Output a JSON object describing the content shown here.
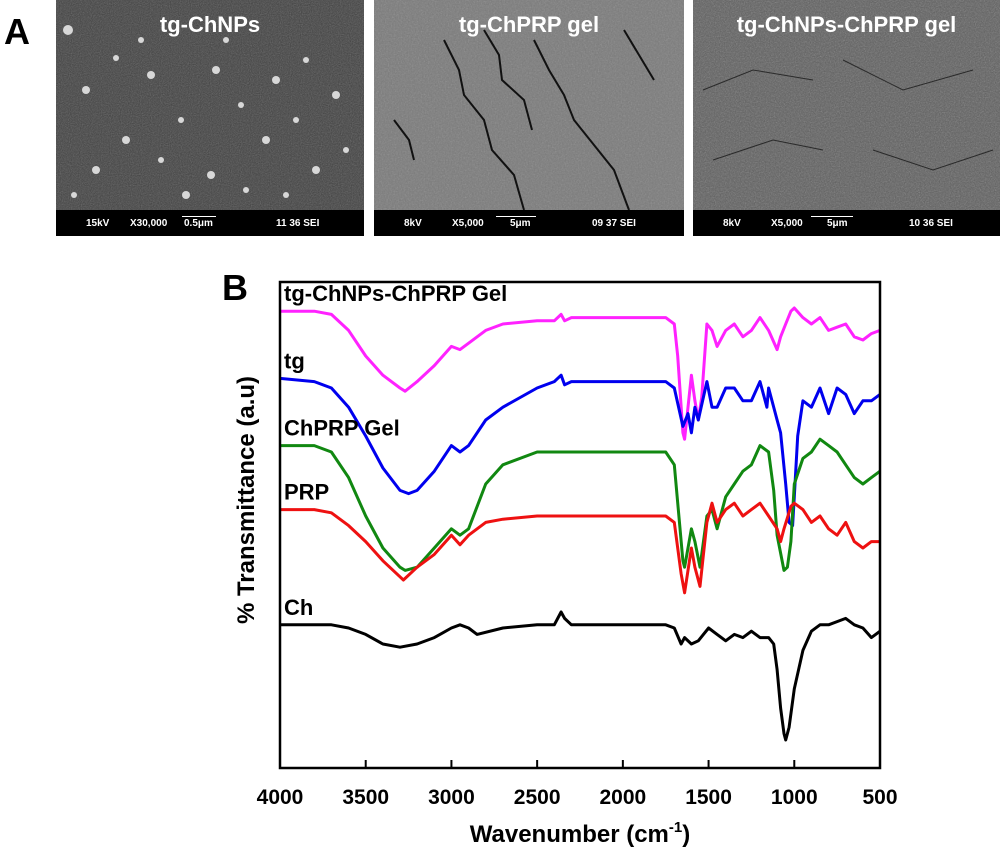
{
  "panel_a": {
    "label": "A",
    "images": [
      {
        "title": "tg-ChNPs",
        "kv": "15kV",
        "mag": "X30,000",
        "scale": "0.5μm",
        "info": "11 36 SEI"
      },
      {
        "title": "tg-ChPRP gel",
        "kv": "8kV",
        "mag": "X5,000",
        "scale": "5μm",
        "info": "09 37 SEI"
      },
      {
        "title": "tg-ChNPs-ChPRP gel",
        "kv": "8kV",
        "mag": "X5,000",
        "scale": "5μm",
        "info": "10 36 SEI"
      }
    ]
  },
  "panel_b": {
    "label": "B"
  },
  "chart_data": {
    "type": "line",
    "xlabel": "Wavenumber (cm",
    "xlabel_sup": "-1",
    "xlabel_close": ")",
    "ylabel": "% Transmittance (a.u)",
    "xlim": [
      4000,
      500
    ],
    "xticks": [
      4000,
      3500,
      3000,
      2500,
      2000,
      1500,
      1000,
      500
    ],
    "ylim": [
      0,
      100
    ],
    "y_ticks_shown": false,
    "series": [
      {
        "name": "tg-ChNPs-ChPRP Gel",
        "color": "#ff22ff",
        "x": [
          4000,
          3800,
          3700,
          3600,
          3500,
          3400,
          3300,
          3270,
          3200,
          3100,
          3000,
          2950,
          2900,
          2800,
          2700,
          2500,
          2400,
          2360,
          2340,
          2300,
          2000,
          1750,
          1700,
          1680,
          1650,
          1640,
          1600,
          1580,
          1560,
          1540,
          1510,
          1480,
          1450,
          1400,
          1350,
          1300,
          1250,
          1200,
          1150,
          1100,
          1080,
          1050,
          1020,
          1000,
          950,
          900,
          850,
          800,
          750,
          700,
          650,
          600,
          550,
          500
        ],
        "y": [
          94,
          94,
          93,
          88,
          80,
          74,
          70,
          69,
          72,
          77,
          83,
          82,
          84,
          88,
          90,
          91,
          91,
          93,
          91,
          92,
          92,
          92,
          90,
          80,
          56,
          54,
          74,
          66,
          60,
          67,
          90,
          88,
          83,
          88,
          90,
          86,
          88,
          92,
          88,
          82,
          86,
          90,
          94,
          95,
          92,
          90,
          92,
          88,
          89,
          90,
          86,
          85,
          87,
          88
        ]
      },
      {
        "name": "tg",
        "color": "#0000ee",
        "x": [
          4000,
          3800,
          3700,
          3600,
          3500,
          3400,
          3300,
          3250,
          3200,
          3100,
          3000,
          2950,
          2900,
          2800,
          2700,
          2500,
          2400,
          2360,
          2340,
          2300,
          2000,
          1750,
          1700,
          1650,
          1620,
          1600,
          1580,
          1560,
          1510,
          1480,
          1450,
          1400,
          1350,
          1300,
          1250,
          1200,
          1160,
          1150,
          1100,
          1080,
          1050,
          1030,
          1010,
          1000,
          980,
          950,
          900,
          850,
          800,
          750,
          700,
          650,
          600,
          550,
          500
        ],
        "y": [
          73,
          72,
          70,
          64,
          55,
          45,
          38,
          37,
          38,
          44,
          52,
          50,
          52,
          60,
          64,
          70,
          72,
          74,
          71,
          72,
          72,
          72,
          70,
          58,
          62,
          56,
          64,
          60,
          72,
          64,
          64,
          70,
          70,
          66,
          66,
          72,
          64,
          70,
          60,
          56,
          40,
          28,
          27,
          36,
          55,
          66,
          64,
          70,
          62,
          70,
          68,
          62,
          66,
          66,
          68
        ]
      },
      {
        "name": "ChPRP Gel",
        "color": "#118811",
        "x": [
          4000,
          3800,
          3700,
          3600,
          3500,
          3400,
          3300,
          3270,
          3200,
          3100,
          3000,
          2950,
          2900,
          2800,
          2700,
          2500,
          2400,
          2300,
          2000,
          1750,
          1700,
          1650,
          1640,
          1600,
          1580,
          1550,
          1510,
          1480,
          1450,
          1400,
          1350,
          1300,
          1250,
          1200,
          1150,
          1120,
          1100,
          1060,
          1040,
          1020,
          1000,
          950,
          900,
          850,
          800,
          750,
          700,
          650,
          600,
          550,
          500
        ],
        "y": [
          52,
          52,
          50,
          42,
          30,
          20,
          14,
          13,
          14,
          20,
          26,
          24,
          26,
          40,
          46,
          50,
          50,
          50,
          50,
          50,
          46,
          16,
          14,
          26,
          22,
          14,
          30,
          32,
          26,
          36,
          40,
          44,
          46,
          52,
          50,
          38,
          24,
          13,
          14,
          22,
          40,
          48,
          50,
          54,
          52,
          50,
          46,
          42,
          40,
          42,
          44
        ]
      },
      {
        "name": "PRP",
        "color": "#ee1111",
        "x": [
          4000,
          3800,
          3700,
          3600,
          3500,
          3400,
          3300,
          3280,
          3200,
          3100,
          3000,
          2950,
          2900,
          2800,
          2700,
          2500,
          2300,
          2000,
          1750,
          1700,
          1660,
          1640,
          1600,
          1580,
          1550,
          1510,
          1480,
          1450,
          1400,
          1350,
          1300,
          1250,
          1200,
          1150,
          1100,
          1080,
          1060,
          1020,
          1000,
          950,
          900,
          850,
          800,
          750,
          700,
          650,
          600,
          550,
          500
        ],
        "y": [
          32,
          32,
          31,
          27,
          22,
          16,
          11,
          10,
          14,
          18,
          24,
          21,
          24,
          28,
          29,
          30,
          30,
          30,
          30,
          28,
          12,
          6,
          20,
          14,
          8,
          28,
          34,
          28,
          32,
          34,
          30,
          32,
          34,
          30,
          26,
          22,
          26,
          33,
          34,
          32,
          28,
          30,
          26,
          24,
          28,
          22,
          20,
          22,
          22
        ]
      },
      {
        "name": "Ch",
        "color": "#000000",
        "x": [
          4000,
          3800,
          3700,
          3600,
          3500,
          3400,
          3300,
          3200,
          3100,
          3000,
          2950,
          2900,
          2850,
          2700,
          2500,
          2400,
          2360,
          2340,
          2300,
          2000,
          1750,
          1700,
          1660,
          1640,
          1600,
          1560,
          1500,
          1450,
          1400,
          1350,
          1300,
          1250,
          1200,
          1150,
          1120,
          1100,
          1080,
          1060,
          1050,
          1030,
          1000,
          950,
          900,
          850,
          800,
          750,
          700,
          650,
          600,
          550,
          500
        ],
        "y": [
          -4,
          -4,
          -4,
          -5,
          -7,
          -10,
          -11,
          -10,
          -8,
          -5,
          -4,
          -5,
          -7,
          -5,
          -4,
          -4,
          0,
          -2,
          -4,
          -4,
          -4,
          -5,
          -10,
          -8,
          -10,
          -9,
          -5,
          -7,
          -9,
          -7,
          -8,
          -6,
          -8,
          -8,
          -10,
          -18,
          -30,
          -38,
          -40,
          -36,
          -24,
          -12,
          -6,
          -4,
          -4,
          -3,
          -2,
          -4,
          -5,
          -8,
          -6
        ]
      }
    ]
  }
}
